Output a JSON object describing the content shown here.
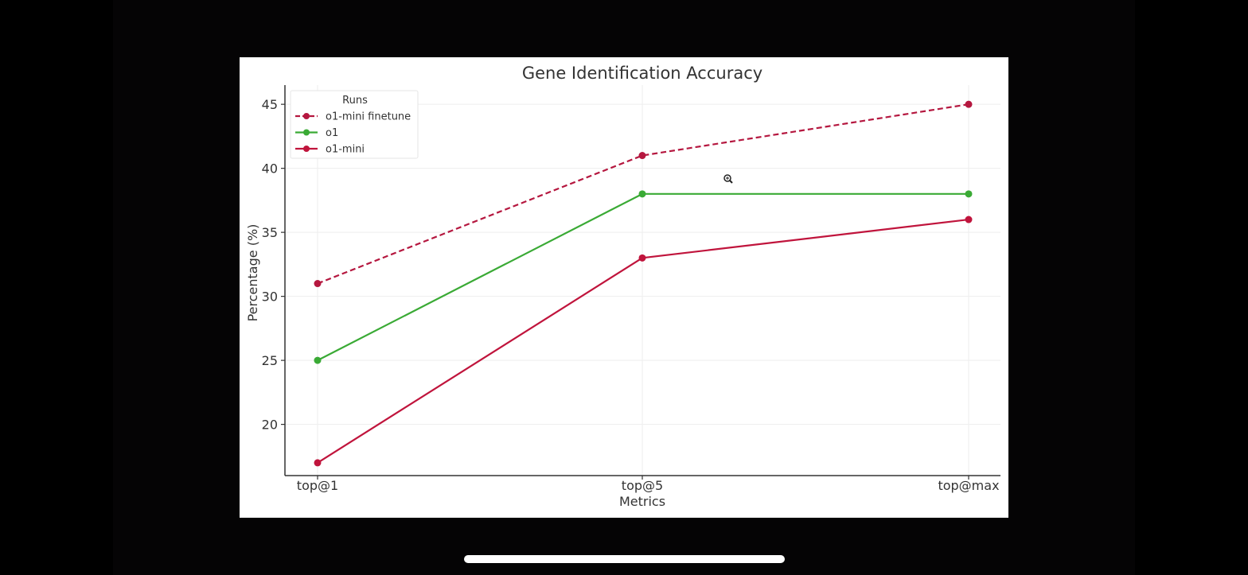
{
  "chart_data": {
    "type": "line",
    "title": "Gene Identification Accuracy",
    "xlabel": "Metrics",
    "ylabel": "Percentage (%)",
    "categories": [
      "top@1",
      "top@5",
      "top@max"
    ],
    "ylim": [
      16,
      46.5
    ],
    "yticks": [
      20,
      25,
      30,
      35,
      40,
      45
    ],
    "grid": true,
    "legend": {
      "title": "Runs",
      "placement": "top-left"
    },
    "series": [
      {
        "name": "o1-mini finetune",
        "values": [
          31,
          41,
          45
        ],
        "color": "#b5173f",
        "dashed": true
      },
      {
        "name": "o1",
        "values": [
          25,
          38,
          38
        ],
        "color": "#3aaa35",
        "dashed": false
      },
      {
        "name": "o1-mini",
        "values": [
          17,
          33,
          36
        ],
        "color": "#c0143c",
        "dashed": false
      }
    ]
  },
  "colors": {
    "background": "#000000",
    "chart_background": "#ffffff",
    "axis": "#333333",
    "text": "#333333",
    "grid": "#eeeeee"
  },
  "icons": {
    "cursor": "magnifier-cursor-icon",
    "home_indicator": "home-indicator-bar"
  }
}
